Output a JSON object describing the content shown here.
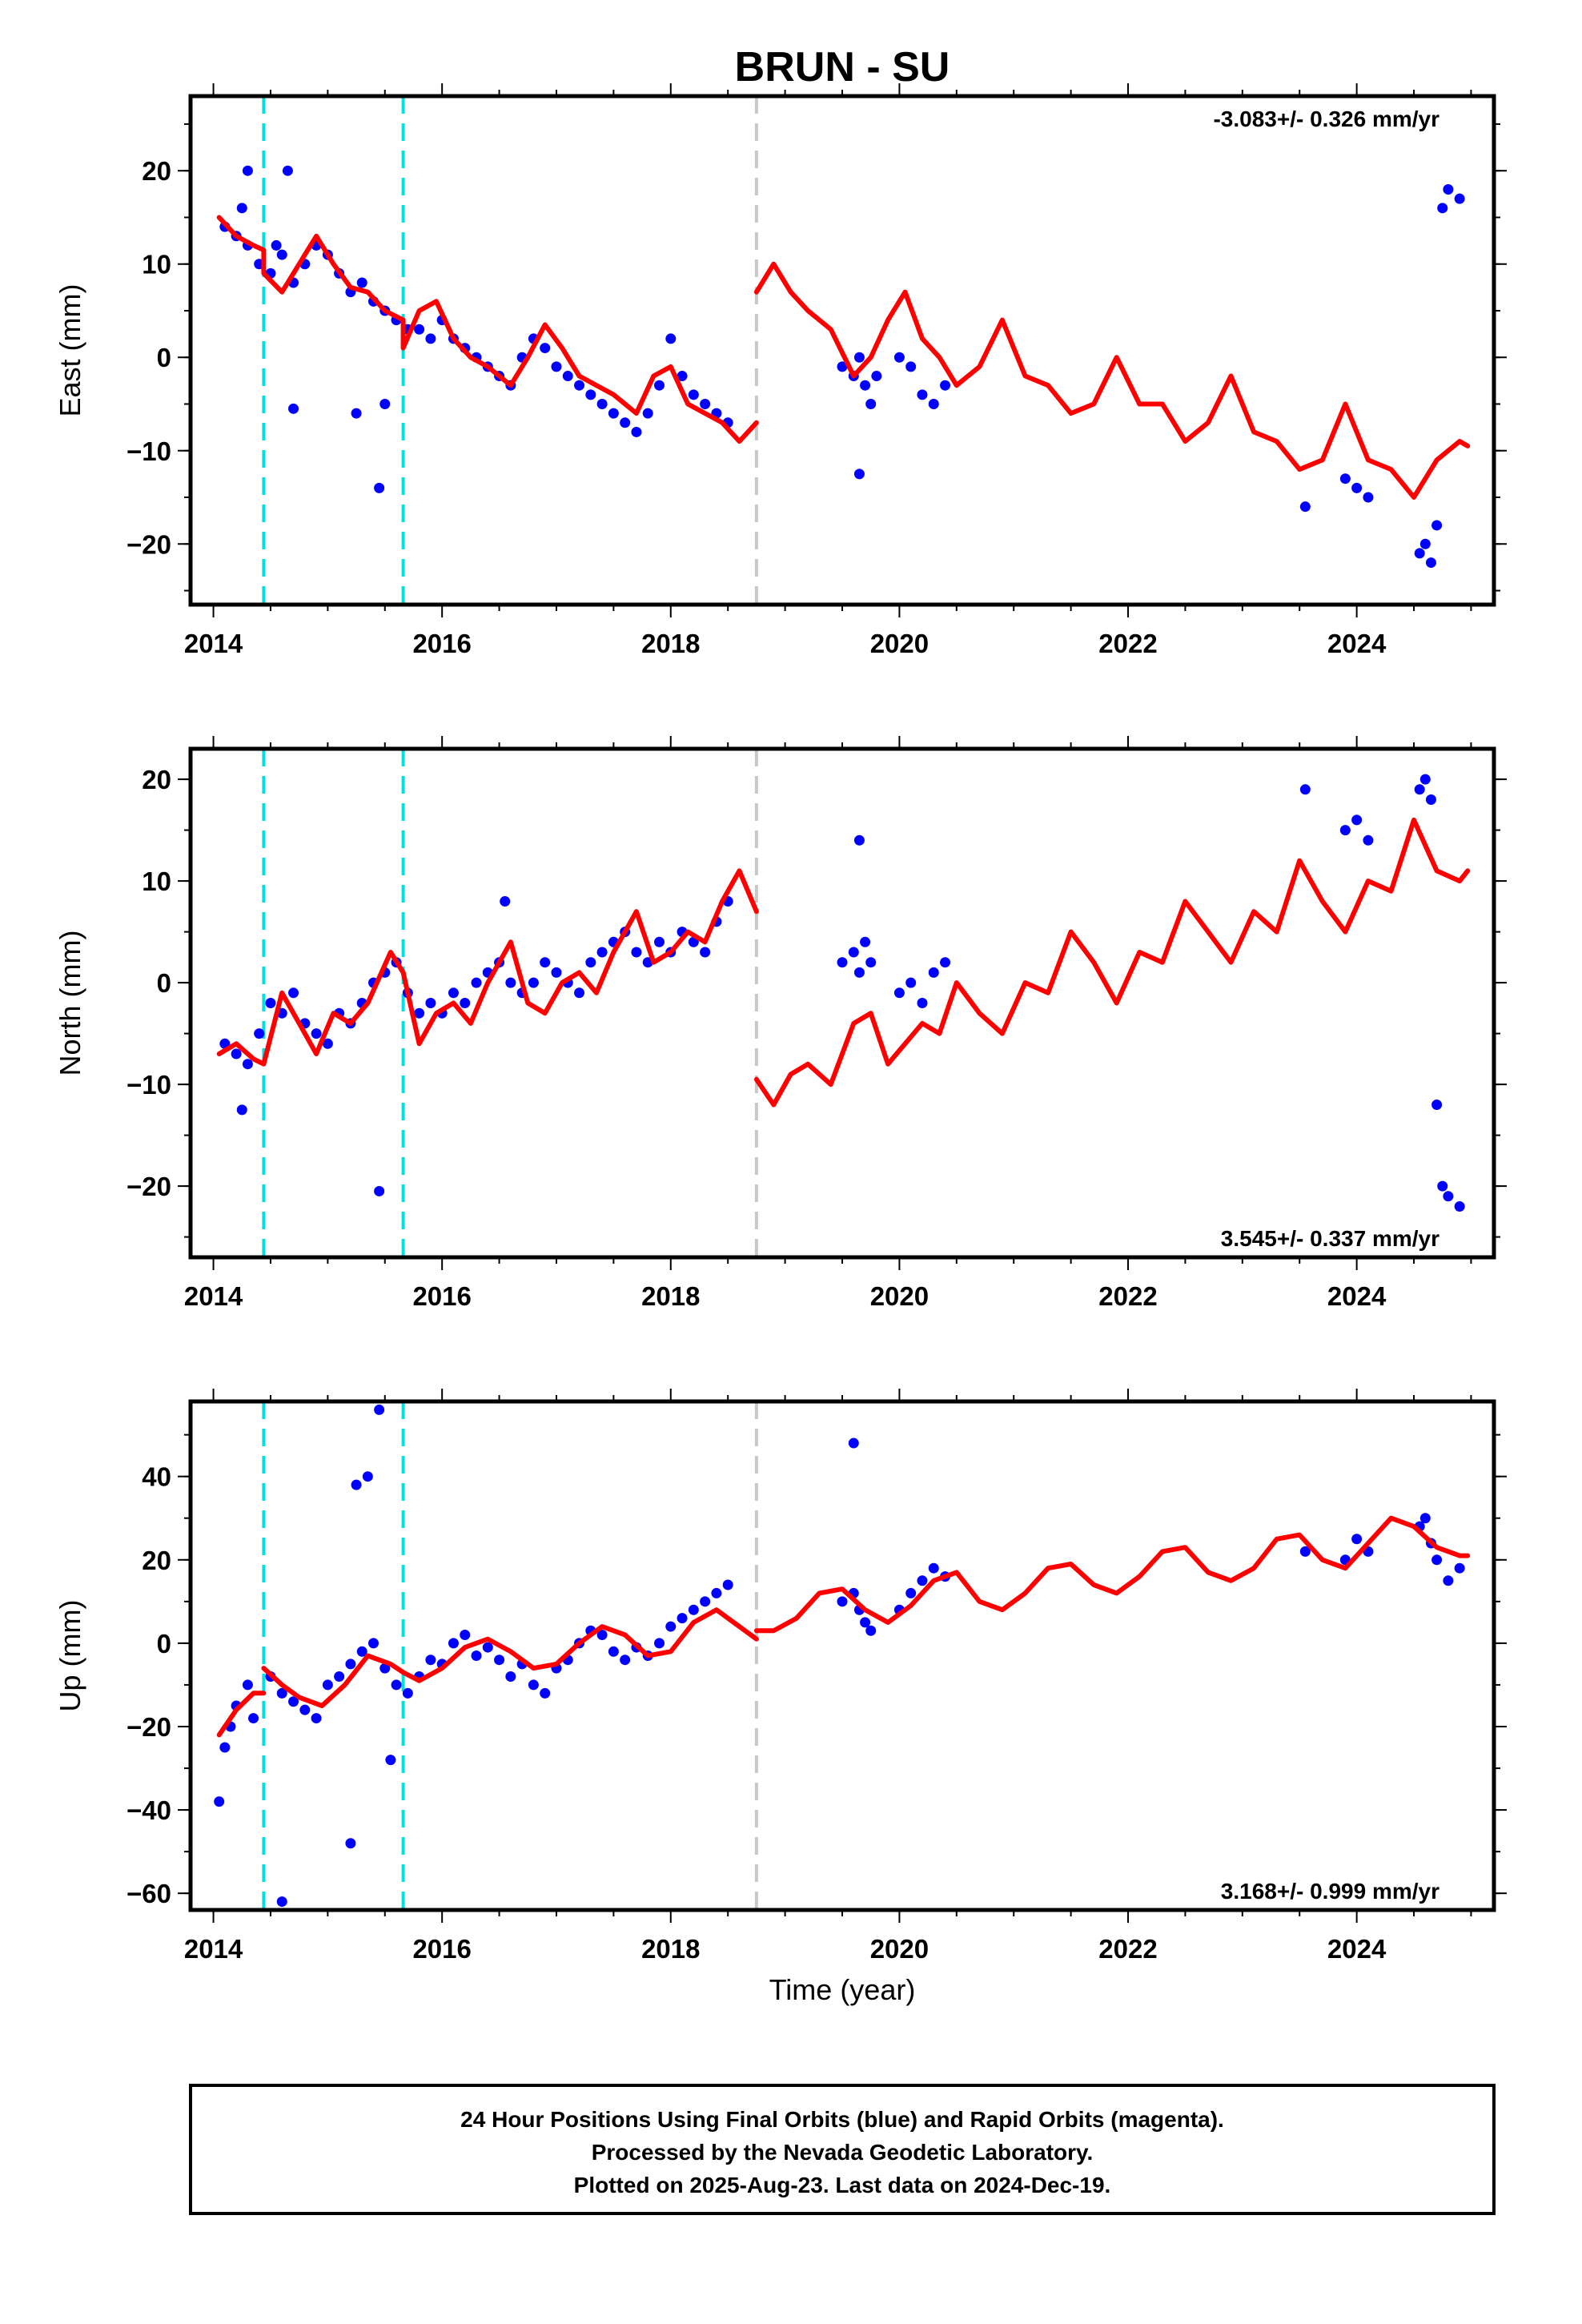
{
  "title": "BRUN - SU",
  "xlabel": "Time (year)",
  "footer": {
    "line1": "24 Hour Positions Using Final Orbits (blue) and Rapid Orbits (magenta).",
    "line2": "Processed by the Nevada Geodetic Laboratory.",
    "line3": "Plotted on 2025-Aug-23. Last data on 2024-Dec-19."
  },
  "colors": {
    "points": "#0000ff",
    "model": "#ff0000",
    "equipment_change": "#00e0e0",
    "earthquake": "#c8c8c8"
  },
  "chart_data": [
    {
      "type": "scatter",
      "component": "East",
      "ylabel": "East (mm)",
      "rate_text": "-3.083+/- 0.326 mm/yr",
      "rate_position": "top-right",
      "xlim": [
        2013.8,
        2025.2
      ],
      "ylim": [
        -26.5,
        28
      ],
      "x_ticks": [
        2014,
        2016,
        2018,
        2020,
        2022,
        2024
      ],
      "y_ticks": [
        -20,
        -10,
        0,
        10,
        20
      ],
      "vlines_cyan_dashed": [
        2014.44,
        2015.66
      ],
      "vlines_gray_dashed": [
        2018.75
      ],
      "model": {
        "name": "model fit",
        "segments": [
          {
            "x": [
              2014.05,
              2014.2,
              2014.35,
              2014.44,
              2014.44,
              2014.6,
              2014.75,
              2014.9,
              2015.05,
              2015.2,
              2015.35,
              2015.5,
              2015.66,
              2015.66,
              2015.8,
              2015.95,
              2016.1,
              2016.25,
              2016.4,
              2016.6,
              2016.75,
              2016.9,
              2017.05,
              2017.2,
              2017.35,
              2017.5,
              2017.7,
              2017.85,
              2018.0,
              2018.15,
              2018.3,
              2018.45,
              2018.6,
              2018.75
            ],
            "y": [
              15,
              13,
              12,
              11.5,
              9,
              7,
              10,
              13,
              10,
              7.5,
              7,
              5,
              4,
              1,
              5,
              6,
              2,
              0,
              -1,
              -3,
              0,
              3.5,
              1,
              -2,
              -3,
              -4,
              -6,
              -2,
              -1,
              -5,
              -6,
              -7,
              -9,
              -7
            ]
          },
          {
            "x": [
              2018.75,
              2018.9,
              2019.05,
              2019.2,
              2019.4,
              2019.6,
              2019.75,
              2019.9,
              2020.05,
              2020.2,
              2020.35,
              2020.5,
              2020.7,
              2020.9,
              2021.1,
              2021.3,
              2021.5,
              2021.7,
              2021.9,
              2022.1,
              2022.3,
              2022.5,
              2022.7,
              2022.9,
              2023.1,
              2023.3,
              2023.5,
              2023.7,
              2023.9,
              2024.1,
              2024.3,
              2024.5,
              2024.7,
              2024.9,
              2024.97
            ],
            "y": [
              7,
              10,
              7,
              5,
              3,
              -2,
              0,
              4,
              7,
              2,
              0,
              -3,
              -1,
              4,
              -2,
              -3,
              -6,
              -5,
              0,
              -5,
              -5,
              -9,
              -7,
              -2,
              -8,
              -9,
              -12,
              -11,
              -5,
              -11,
              -12,
              -15,
              -11,
              -9,
              -9.5
            ]
          }
        ]
      },
      "points": {
        "name": "24 Hour Positions",
        "x": [
          2014.1,
          2014.2,
          2014.25,
          2014.3,
          2014.4,
          2014.5,
          2014.55,
          2014.6,
          2014.7,
          2014.8,
          2014.9,
          2015.0,
          2015.1,
          2015.2,
          2015.3,
          2015.4,
          2015.5,
          2015.6,
          2015.7,
          2015.8,
          2015.9,
          2016.0,
          2016.1,
          2016.2,
          2016.3,
          2016.4,
          2016.5,
          2016.6,
          2016.7,
          2016.8,
          2016.9,
          2017.0,
          2017.1,
          2017.2,
          2017.3,
          2017.4,
          2017.5,
          2017.6,
          2017.7,
          2017.8,
          2017.9,
          2018.0,
          2018.1,
          2018.2,
          2018.3,
          2018.4,
          2018.5,
          2019.5,
          2019.6,
          2019.65,
          2019.7,
          2019.75,
          2019.8,
          2020.0,
          2020.1,
          2020.2,
          2020.3,
          2020.4,
          2023.55,
          2023.9,
          2024.0,
          2024.1,
          2024.55,
          2024.6,
          2024.65,
          2024.7,
          2024.75,
          2024.8,
          2024.9,
          2014.7,
          2015.25,
          2015.45,
          2015.5,
          2019.65,
          2014.3,
          2014.65
        ],
        "y": [
          14,
          13,
          16,
          12,
          10,
          9,
          12,
          11,
          8,
          10,
          12,
          11,
          9,
          7,
          8,
          6,
          5,
          4,
          3,
          3,
          2,
          4,
          2,
          1,
          0,
          -1,
          -2,
          -3,
          0,
          2,
          1,
          -1,
          -2,
          -3,
          -4,
          -5,
          -6,
          -7,
          -8,
          -6,
          -3,
          2,
          -2,
          -4,
          -5,
          -6,
          -7,
          -1,
          -2,
          0,
          -3,
          -5,
          -2,
          0,
          -1,
          -4,
          -5,
          -3,
          -16,
          -13,
          -14,
          -15,
          -21,
          -20,
          -22,
          -18,
          16,
          18,
          17,
          -5.5,
          -6,
          -14,
          -5,
          -12.5,
          20,
          20
        ]
      }
    },
    {
      "type": "scatter",
      "component": "North",
      "ylabel": "North (mm)",
      "rate_text": "3.545+/- 0.337 mm/yr",
      "rate_position": "bottom-right",
      "xlim": [
        2013.8,
        2025.2
      ],
      "ylim": [
        -27,
        23
      ],
      "x_ticks": [
        2014,
        2016,
        2018,
        2020,
        2022,
        2024
      ],
      "y_ticks": [
        -20,
        -10,
        0,
        10,
        20
      ],
      "vlines_cyan_dashed": [
        2014.44,
        2015.66
      ],
      "vlines_gray_dashed": [
        2018.75
      ],
      "model": {
        "name": "model fit",
        "segments": [
          {
            "x": [
              2014.05,
              2014.2,
              2014.35,
              2014.44,
              2014.6,
              2014.75,
              2014.9,
              2015.05,
              2015.2,
              2015.35,
              2015.55,
              2015.66,
              2015.8,
              2015.95,
              2016.1,
              2016.25,
              2016.4,
              2016.6,
              2016.75,
              2016.9,
              2017.05,
              2017.2,
              2017.35,
              2017.5,
              2017.7,
              2017.85,
              2018.0,
              2018.15,
              2018.3,
              2018.45,
              2018.6,
              2018.75
            ],
            "y": [
              -7,
              -6,
              -7.5,
              -8,
              -1,
              -4,
              -7,
              -3,
              -4,
              -2,
              3,
              1,
              -6,
              -3,
              -2,
              -4,
              0,
              4,
              -2,
              -3,
              0,
              1,
              -1,
              3,
              7,
              2,
              3,
              5,
              4,
              8,
              11,
              7
            ]
          },
          {
            "x": [
              2018.75,
              2018.9,
              2019.05,
              2019.2,
              2019.4,
              2019.6,
              2019.75,
              2019.9,
              2020.05,
              2020.2,
              2020.35,
              2020.5,
              2020.7,
              2020.9,
              2021.1,
              2021.3,
              2021.5,
              2021.7,
              2021.9,
              2022.1,
              2022.3,
              2022.5,
              2022.7,
              2022.9,
              2023.1,
              2023.3,
              2023.5,
              2023.7,
              2023.9,
              2024.1,
              2024.3,
              2024.5,
              2024.7,
              2024.9,
              2024.97
            ],
            "y": [
              -9.5,
              -12,
              -9,
              -8,
              -10,
              -4,
              -3,
              -8,
              -6,
              -4,
              -5,
              0,
              -3,
              -5,
              0,
              -1,
              5,
              2,
              -2,
              3,
              2,
              8,
              5,
              2,
              7,
              5,
              12,
              8,
              5,
              10,
              9,
              16,
              11,
              10,
              11
            ]
          }
        ]
      },
      "points": {
        "name": "24 Hour Positions",
        "x": [
          2014.1,
          2014.2,
          2014.3,
          2014.4,
          2014.5,
          2014.6,
          2014.7,
          2014.8,
          2014.9,
          2015.0,
          2015.1,
          2015.2,
          2015.3,
          2015.4,
          2015.5,
          2015.6,
          2015.7,
          2015.8,
          2015.9,
          2016.0,
          2016.1,
          2016.2,
          2016.3,
          2016.4,
          2016.5,
          2016.6,
          2016.7,
          2016.8,
          2016.9,
          2017.0,
          2017.1,
          2017.2,
          2017.3,
          2017.4,
          2017.5,
          2017.6,
          2017.7,
          2017.8,
          2017.9,
          2018.0,
          2018.1,
          2018.2,
          2018.3,
          2018.4,
          2018.5,
          2019.5,
          2019.6,
          2019.65,
          2019.7,
          2019.75,
          2020.0,
          2020.1,
          2020.2,
          2020.3,
          2020.4,
          2023.55,
          2023.9,
          2024.0,
          2024.1,
          2024.55,
          2024.6,
          2024.65,
          2024.7,
          2024.75,
          2024.8,
          2024.9,
          2014.25,
          2015.45,
          2019.65,
          2016.55
        ],
        "y": [
          -6,
          -7,
          -8,
          -5,
          -2,
          -3,
          -1,
          -4,
          -5,
          -6,
          -3,
          -4,
          -2,
          0,
          1,
          2,
          -1,
          -3,
          -2,
          -3,
          -1,
          -2,
          0,
          1,
          2,
          0,
          -1,
          0,
          2,
          1,
          0,
          -1,
          2,
          3,
          4,
          5,
          3,
          2,
          4,
          3,
          5,
          4,
          3,
          6,
          8,
          2,
          3,
          1,
          4,
          2,
          -1,
          0,
          -2,
          1,
          2,
          19,
          15,
          16,
          14,
          19,
          20,
          18,
          -12,
          -20,
          -21,
          -22,
          -12.5,
          -20.5,
          14,
          8
        ]
      }
    },
    {
      "type": "scatter",
      "component": "Up",
      "ylabel": "Up (mm)",
      "rate_text": "3.168+/- 0.999 mm/yr",
      "rate_position": "bottom-right",
      "xlim": [
        2013.8,
        2025.2
      ],
      "ylim": [
        -64,
        58
      ],
      "x_ticks": [
        2014,
        2016,
        2018,
        2020,
        2022,
        2024
      ],
      "y_ticks": [
        -60,
        -40,
        -20,
        0,
        20,
        40
      ],
      "vlines_cyan_dashed": [
        2014.44,
        2015.66
      ],
      "vlines_gray_dashed": [
        2018.75
      ],
      "model": {
        "name": "model fit",
        "segments": [
          {
            "x": [
              2014.05,
              2014.2,
              2014.35,
              2014.44
            ],
            "y": [
              -22,
              -16,
              -12,
              -12
            ]
          },
          {
            "x": [
              2014.44,
              2014.6,
              2014.75,
              2014.95,
              2015.15,
              2015.35,
              2015.55,
              2015.66
            ],
            "y": [
              -6,
              -10,
              -13,
              -15,
              -10,
              -3,
              -5,
              -7
            ]
          },
          {
            "x": [
              2015.66,
              2015.8,
              2016.0,
              2016.2,
              2016.4,
              2016.6,
              2016.8,
              2017.0,
              2017.2,
              2017.4,
              2017.6,
              2017.8,
              2018.0,
              2018.2,
              2018.4,
              2018.6,
              2018.75
            ],
            "y": [
              -7,
              -9,
              -6,
              -1,
              1,
              -2,
              -6,
              -5,
              0,
              4,
              2,
              -3,
              -2,
              5,
              8,
              4,
              1
            ]
          },
          {
            "x": [
              2018.75,
              2018.9,
              2019.1,
              2019.3,
              2019.5,
              2019.7,
              2019.9,
              2020.1,
              2020.3,
              2020.5,
              2020.7,
              2020.9,
              2021.1,
              2021.3,
              2021.5,
              2021.7,
              2021.9,
              2022.1,
              2022.3,
              2022.5,
              2022.7,
              2022.9,
              2023.1,
              2023.3,
              2023.5,
              2023.7,
              2023.9,
              2024.1,
              2024.3,
              2024.5,
              2024.7,
              2024.9,
              2024.97
            ],
            "y": [
              3,
              3,
              6,
              12,
              13,
              8,
              5,
              9,
              15,
              17,
              10,
              8,
              12,
              18,
              19,
              14,
              12,
              16,
              22,
              23,
              17,
              15,
              18,
              25,
              26,
              20,
              18,
              24,
              30,
              28,
              23,
              21,
              21
            ]
          }
        ]
      },
      "points": {
        "name": "24 Hour Positions",
        "x": [
          2014.1,
          2014.15,
          2014.2,
          2014.3,
          2014.35,
          2014.5,
          2014.6,
          2014.7,
          2014.8,
          2014.9,
          2015.0,
          2015.1,
          2015.2,
          2015.3,
          2015.4,
          2015.5,
          2015.6,
          2015.7,
          2015.8,
          2015.9,
          2016.0,
          2016.1,
          2016.2,
          2016.3,
          2016.4,
          2016.5,
          2016.6,
          2016.7,
          2016.8,
          2016.9,
          2017.0,
          2017.1,
          2017.2,
          2017.3,
          2017.4,
          2017.5,
          2017.6,
          2017.7,
          2017.8,
          2017.9,
          2018.0,
          2018.1,
          2018.2,
          2018.3,
          2018.4,
          2018.5,
          2019.5,
          2019.6,
          2019.65,
          2019.7,
          2019.75,
          2020.0,
          2020.1,
          2020.2,
          2020.3,
          2020.4,
          2023.55,
          2023.9,
          2024.0,
          2024.1,
          2024.55,
          2024.6,
          2024.65,
          2024.7,
          2024.8,
          2024.9,
          2014.05,
          2015.25,
          2015.35,
          2015.45,
          2015.55,
          2014.6,
          2019.6,
          2015.2
        ],
        "y": [
          -25,
          -20,
          -15,
          -10,
          -18,
          -8,
          -12,
          -14,
          -16,
          -18,
          -10,
          -8,
          -5,
          -2,
          0,
          -6,
          -10,
          -12,
          -8,
          -4,
          -5,
          0,
          2,
          -3,
          -1,
          -4,
          -8,
          -5,
          -10,
          -12,
          -6,
          -4,
          0,
          3,
          2,
          -2,
          -4,
          -1,
          -3,
          0,
          4,
          6,
          8,
          10,
          12,
          14,
          10,
          12,
          8,
          5,
          3,
          8,
          12,
          15,
          18,
          16,
          22,
          20,
          25,
          22,
          28,
          30,
          24,
          20,
          15,
          18,
          -38,
          38,
          40,
          56,
          -28,
          -62,
          48,
          -48
        ]
      }
    }
  ]
}
